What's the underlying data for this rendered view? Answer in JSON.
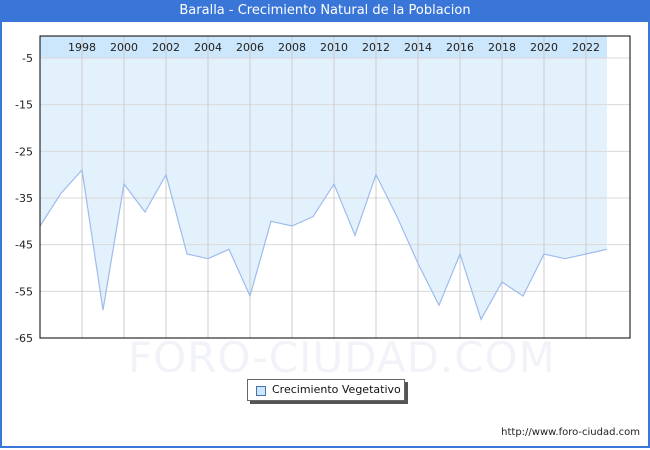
{
  "title": "Baralla - Crecimiento Natural de la Poblacion",
  "legend": {
    "label": "Crecimiento Vegetativo",
    "swatch_color": "#cce6fb"
  },
  "watermark": "FORO-CIUDAD.COM",
  "footer": {
    "url": "http://www.foro-ciudad.com"
  },
  "colors": {
    "title_bar": "#3a76d8",
    "fill": "#e3f1fd",
    "header_band": "#cce6fb",
    "line": "#9dbcec",
    "grid": "#d8d8d8"
  },
  "chart_data": {
    "type": "area",
    "title": "Baralla - Crecimiento Natural de la Poblacion",
    "xlabel": "",
    "ylabel": "",
    "x": [
      1996,
      1997,
      1998,
      1999,
      2000,
      2001,
      2002,
      2003,
      2004,
      2005,
      2006,
      2007,
      2008,
      2009,
      2010,
      2011,
      2012,
      2013,
      2014,
      2015,
      2016,
      2017,
      2018,
      2019,
      2020,
      2021,
      2022,
      2023
    ],
    "series": [
      {
        "name": "Crecimiento Vegetativo",
        "values": [
          -41,
          -34,
          -29,
          -59,
          -32,
          -38,
          -30,
          -47,
          -48,
          -46,
          -56,
          -40,
          -41,
          -39,
          -32,
          -43,
          -30,
          -39,
          -49,
          -58,
          -47,
          -61,
          -53,
          -56,
          -47,
          -48,
          -47,
          -46
        ]
      }
    ],
    "x_tick_labels": [
      "1998",
      "2000",
      "2002",
      "2004",
      "2006",
      "2008",
      "2010",
      "2012",
      "2014",
      "2016",
      "2018",
      "2020",
      "2022"
    ],
    "y_tick_labels": [
      "-5",
      "-15",
      "-25",
      "-35",
      "-45",
      "-55",
      "-65"
    ],
    "ylim": [
      -65,
      -5
    ],
    "xaxis_position": "top",
    "grid": true,
    "legend_position": "bottom-center"
  }
}
